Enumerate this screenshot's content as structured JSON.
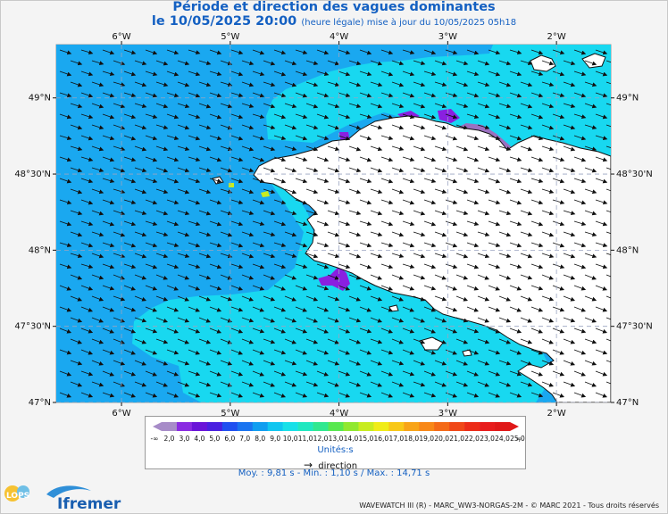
{
  "title": "Période et direction des vagues dominantes",
  "date_line": {
    "main": "le 10/05/2025 20:00",
    "note": "(heure légale) mise à jour du 10/05/2025 05h18"
  },
  "axes": {
    "lon_labels": [
      "6°W",
      "5°W",
      "4°W",
      "3°W",
      "2°W"
    ],
    "lat_labels": [
      "49°N",
      "48°30'N",
      "48°N",
      "47°30'N",
      "47°N"
    ],
    "lon_values": [
      -6,
      -5,
      -4,
      -3,
      -2
    ],
    "lat_values": [
      49,
      48.5,
      48,
      47.5,
      47
    ],
    "lon_range": [
      -6.6,
      -1.5
    ],
    "lat_range": [
      47,
      49.35
    ]
  },
  "colorbar": {
    "ticks": [
      "2,0",
      "3,0",
      "4,0",
      "5,0",
      "6,0",
      "7,0",
      "8,0",
      "9,0",
      "10,0",
      "11,0",
      "12,0",
      "13,0",
      "14,0",
      "15,0",
      "16,0",
      "17,0",
      "18,0",
      "19,0",
      "20,0",
      "21,0",
      "22,0",
      "23,0",
      "24,0",
      "25,0"
    ],
    "low_symbol": "-∞",
    "high_symbol": "∞",
    "colors": [
      "#a78cc8",
      "#8a2be2",
      "#6a14d8",
      "#4a20e0",
      "#2050f0",
      "#1a74f0",
      "#109ef0",
      "#10c6f0",
      "#18e0e8",
      "#20e8c0",
      "#30e890",
      "#58e850",
      "#90e830",
      "#c8ec20",
      "#f0ec18",
      "#f8c818",
      "#f8a418",
      "#f88818",
      "#f46a18",
      "#f04818",
      "#ec2c18",
      "#e81c1c",
      "#e01818"
    ],
    "unit": "Unités:s"
  },
  "legend": {
    "direction": "direction"
  },
  "stats": "Moy. : 9,81 s  -  Min. : 1,10 s / Max. : 14,71 s",
  "footer": "WAVEWATCH III (R) - MARC_WW3-NORGAS-2M - © MARC 2021 - Tous droits réservés",
  "logos": {
    "lops": "LOPS",
    "ifremer": "Ifremer"
  },
  "colors": {
    "sea_main": "#1aa8f0",
    "sea_coastal": "#18d8f0",
    "sea_purple": "#9a70c0",
    "sea_violet": "#8a20e0",
    "land": "#ffffff",
    "title": "#1460c2"
  }
}
